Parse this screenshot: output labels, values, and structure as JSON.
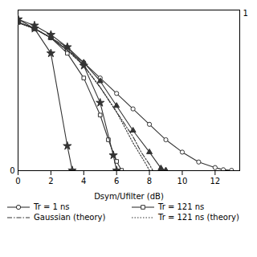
{
  "chart_data": {
    "type": "line",
    "xlabel": "Dsym/Ufilter (dB)",
    "xlim": [
      0,
      13.5
    ],
    "ylim": [
      0,
      0.52
    ],
    "xticks": [
      0,
      2,
      4,
      6,
      8,
      10,
      12
    ],
    "yticks": [],
    "tick_labels": "x",
    "color": "#333333",
    "legend": "bottom",
    "annotations": [
      "0",
      "1"
    ],
    "series": [
      {
        "name": "Tr = 1 ns",
        "marker": "circle_open",
        "line_style": "solid",
        "x": [
          0,
          1,
          2,
          3,
          4,
          5,
          6,
          7,
          8,
          9,
          10,
          11,
          12,
          12.5,
          13.0
        ],
        "values": [
          0.48,
          0.46,
          0.43,
          0.39,
          0.35,
          0.3,
          0.25,
          0.2,
          0.15,
          0.1,
          0.06,
          0.028,
          0.01,
          0.003,
          0.001
        ]
      },
      {
        "name": "Tr = 121 ns",
        "marker": "square_open",
        "line_style": "solid",
        "x": [
          0,
          1,
          2,
          3,
          4,
          5,
          5.5,
          6,
          6.3
        ],
        "values": [
          0.48,
          0.46,
          0.43,
          0.38,
          0.3,
          0.18,
          0.1,
          0.03,
          0.001
        ]
      },
      {
        "name": "Gaussian (theory)",
        "marker": "none",
        "line_style": "dashdot",
        "x": [
          0,
          1,
          2,
          3,
          4,
          5,
          6,
          7,
          7.5,
          8,
          8.2
        ],
        "values": [
          0.48,
          0.46,
          0.43,
          0.39,
          0.34,
          0.27,
          0.19,
          0.11,
          0.06,
          0.02,
          0.001
        ]
      },
      {
        "name": "Tr = 121 ns (theory)",
        "marker": "none",
        "line_style": "dotted",
        "x": [
          0,
          1,
          2,
          3,
          4,
          5,
          6,
          7,
          7.8,
          8.0
        ],
        "values": [
          0.48,
          0.46,
          0.43,
          0.39,
          0.34,
          0.27,
          0.19,
          0.09,
          0.02,
          0.001
        ]
      },
      {
        "marker": "star",
        "line_style": "solid",
        "x": [
          0,
          1,
          2,
          3,
          3.3
        ],
        "values": [
          0.49,
          0.46,
          0.38,
          0.08,
          0.001
        ]
      },
      {
        "marker": "star",
        "line_style": "solid",
        "x": [
          0,
          1,
          2,
          3,
          4,
          5,
          5.8,
          6.0
        ],
        "values": [
          0.49,
          0.47,
          0.44,
          0.4,
          0.34,
          0.22,
          0.05,
          0.001
        ]
      },
      {
        "marker": "triangle",
        "line_style": "solid",
        "x": [
          0,
          1,
          2,
          3,
          4,
          5,
          6,
          7,
          8,
          8.7,
          9.0
        ],
        "values": [
          0.48,
          0.46,
          0.43,
          0.4,
          0.35,
          0.29,
          0.21,
          0.13,
          0.06,
          0.008,
          0.001
        ]
      }
    ]
  }
}
